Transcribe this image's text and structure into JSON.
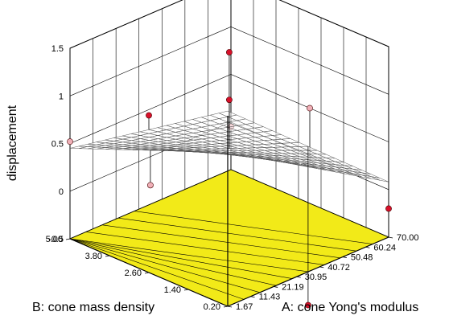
{
  "chart_data": {
    "type": "surface3d",
    "title": "",
    "zlabel": "displacement",
    "xlabel": "A: cone Yong's modulus",
    "ylabel": "B: cone mass density",
    "z_ticks": [
      "-0.5",
      "0",
      "0.5",
      "1",
      "1.5"
    ],
    "x_ticks": [
      "1.67",
      "11.43",
      "21.19",
      "30.95",
      "40.72",
      "50.48",
      "60.24",
      "70.00"
    ],
    "y_ticks": [
      "0.20",
      "1.40",
      "2.60",
      "3.80",
      "5.00"
    ],
    "xlim": [
      1.67,
      70.0
    ],
    "ylim": [
      0.2,
      5.0
    ],
    "zlim": [
      -0.5,
      1.5
    ],
    "surface_corners": {
      "A_low_B_low": 1.55,
      "A_high_B_low": 0.08,
      "A_low_B_high": 0.45,
      "A_high_B_high": -0.32
    },
    "design_points": [
      {
        "A": 35.8,
        "B": 2.6,
        "z": 1.45,
        "above_surface": true
      },
      {
        "A": 1.67,
        "B": 2.6,
        "z": 1.15,
        "above_surface": true
      },
      {
        "A": 35.8,
        "B": 2.6,
        "z": 0.95,
        "above_surface": true
      },
      {
        "A": 1.67,
        "B": 5.0,
        "z": 0.52,
        "above_surface": false
      },
      {
        "A": 70.0,
        "B": 2.6,
        "z": 0.5,
        "above_surface": false
      },
      {
        "A": 70.0,
        "B": 5.0,
        "z": -0.05,
        "above_surface": false
      },
      {
        "A": 35.8,
        "B": 5.0,
        "z": -0.3,
        "above_surface": false
      },
      {
        "A": 70.0,
        "B": 0.2,
        "z": -0.2,
        "above_surface": true
      },
      {
        "A": 35.8,
        "B": 0.2,
        "z": -0.85,
        "above_surface": true
      }
    ],
    "grid": true,
    "colors": {
      "floor": "#f2ea18",
      "surface": "#ffffff",
      "point": "#d8102a",
      "point_light": "#f0b0b8"
    }
  }
}
